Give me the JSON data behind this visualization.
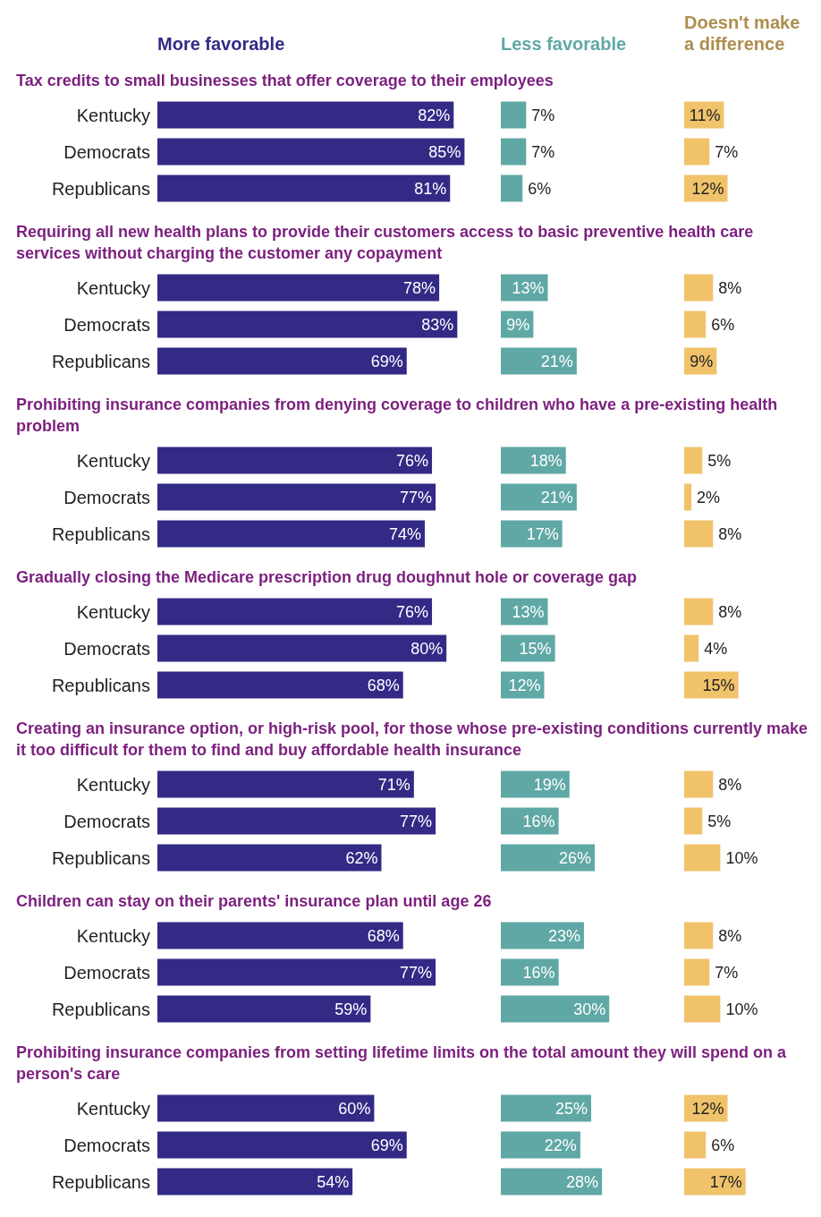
{
  "chart_data": [
    {
      "type": "bar",
      "orientation": "horizontal",
      "legend": "top",
      "title": "Tax credits to small businesses that offer coverage to their employees",
      "categories": [
        "Kentucky",
        "Democrats",
        "Republicans"
      ],
      "series": [
        {
          "name": "More favorable",
          "color": "#332a86",
          "values": [
            82,
            85,
            81
          ],
          "value_labels": [
            "82%",
            "85%",
            "81%"
          ]
        }
      ]
    },
    {
      "type": "bar",
      "orientation": "horizontal",
      "legend": "top",
      "categories": [
        null,
        null,
        null
      ],
      "series": [
        {
          "name": "Less favorable",
          "color": "#5fa8a5",
          "values": [
            7,
            7,
            6
          ],
          "value_labels": [
            "7%",
            "7%",
            "6%"
          ]
        }
      ]
    },
    {
      "type": "bar",
      "orientation": "horizontal",
      "legend": "top",
      "categories": [
        null,
        null,
        null
      ],
      "series": [
        {
          "name": "Doesn't make a difference",
          "color": "#f0c36b",
          "values": [
            11,
            7,
            12
          ],
          "value_labels": [
            "11%",
            "7%",
            "12%"
          ]
        }
      ]
    },
    {
      "type": "bar",
      "orientation": "horizontal",
      "title": "Requiring all new health plans to provide their customers access to basic preventive health care services without charging the customer any copayment",
      "categories": [
        "Kentucky",
        "Democrats",
        "Republicans"
      ],
      "series": [
        {
          "color": "#332a86",
          "values": [
            78,
            83,
            69
          ],
          "value_labels": [
            "78%",
            "83%",
            "69%"
          ]
        }
      ]
    },
    {
      "type": "bar",
      "orientation": "horizontal",
      "categories": [
        null,
        null,
        null
      ],
      "series": [
        {
          "color": "#5fa8a5",
          "values": [
            13,
            9,
            21
          ],
          "value_labels": [
            "13%",
            "9%",
            "21%"
          ]
        }
      ]
    },
    {
      "type": "bar",
      "orientation": "horizontal",
      "categories": [
        null,
        null,
        null
      ],
      "series": [
        {
          "color": "#f0c36b",
          "values": [
            8,
            6,
            9
          ],
          "value_labels": [
            "8%",
            "6%",
            "9%"
          ]
        }
      ]
    },
    {
      "type": "bar",
      "orientation": "horizontal",
      "title": "Prohibiting insurance companies from denying coverage to children who have a pre-existing health problem",
      "categories": [
        "Kentucky",
        "Democrats",
        "Republicans"
      ],
      "series": [
        {
          "color": "#332a86",
          "values": [
            76,
            77,
            74
          ],
          "value_labels": [
            "76%",
            "77%",
            "74%"
          ]
        }
      ]
    },
    {
      "type": "bar",
      "orientation": "horizontal",
      "categories": [
        null,
        null,
        null
      ],
      "series": [
        {
          "color": "#5fa8a5",
          "values": [
            18,
            21,
            17
          ],
          "value_labels": [
            "18%",
            "21%",
            "17%"
          ]
        }
      ]
    },
    {
      "type": "bar",
      "orientation": "horizontal",
      "categories": [
        null,
        null,
        null
      ],
      "series": [
        {
          "color": "#f0c36b",
          "values": [
            5,
            2,
            8
          ],
          "value_labels": [
            "5%",
            "2%",
            "8%"
          ]
        }
      ]
    },
    {
      "type": "bar",
      "orientation": "horizontal",
      "title": "Gradually closing the Medicare prescription drug doughnut hole or coverage gap",
      "categories": [
        "Kentucky",
        "Democrats",
        "Republicans"
      ],
      "series": [
        {
          "color": "#332a86",
          "values": [
            76,
            80,
            68
          ],
          "value_labels": [
            "76%",
            "80%",
            "68%"
          ]
        }
      ]
    },
    {
      "type": "bar",
      "orientation": "horizontal",
      "categories": [
        null,
        null,
        null
      ],
      "series": [
        {
          "color": "#5fa8a5",
          "values": [
            13,
            15,
            12
          ],
          "value_labels": [
            "13%",
            "15%",
            "12%"
          ]
        }
      ]
    },
    {
      "type": "bar",
      "orientation": "horizontal",
      "categories": [
        null,
        null,
        null
      ],
      "series": [
        {
          "color": "#f0c36b",
          "values": [
            8,
            4,
            15
          ],
          "value_labels": [
            "8%",
            "4%",
            "15%"
          ]
        }
      ]
    },
    {
      "type": "bar",
      "orientation": "horizontal",
      "title": "Creating an insurance option, or high-risk pool, for those whose pre-existing conditions currently make it too difficult for them to find and buy affordable health insurance",
      "categories": [
        "Kentucky",
        "Democrats",
        "Republicans"
      ],
      "series": [
        {
          "color": "#332a86",
          "values": [
            71,
            77,
            62
          ],
          "value_labels": [
            "71%",
            "77%",
            "62%"
          ]
        }
      ]
    },
    {
      "type": "bar",
      "orientation": "horizontal",
      "categories": [
        null,
        null,
        null
      ],
      "series": [
        {
          "color": "#5fa8a5",
          "values": [
            19,
            16,
            26
          ],
          "value_labels": [
            "19%",
            "16%",
            "26%"
          ]
        }
      ]
    },
    {
      "type": "bar",
      "orientation": "horizontal",
      "categories": [
        null,
        null,
        null
      ],
      "series": [
        {
          "color": "#f0c36b",
          "values": [
            8,
            5,
            10
          ],
          "value_labels": [
            "8%",
            "5%",
            "10%"
          ]
        }
      ]
    },
    {
      "type": "bar",
      "orientation": "horizontal",
      "title": "Children can stay on their parents' insurance plan until age 26",
      "categories": [
        "Kentucky",
        "Democrats",
        "Republicans"
      ],
      "series": [
        {
          "color": "#332a86",
          "values": [
            68,
            77,
            59
          ],
          "value_labels": [
            "68%",
            "77%",
            "59%"
          ]
        }
      ]
    },
    {
      "type": "bar",
      "orientation": "horizontal",
      "categories": [
        null,
        null,
        null
      ],
      "series": [
        {
          "color": "#5fa8a5",
          "values": [
            23,
            16,
            30
          ],
          "value_labels": [
            "23%",
            "16%",
            "30%"
          ]
        }
      ]
    },
    {
      "type": "bar",
      "orientation": "horizontal",
      "categories": [
        null,
        null,
        null
      ],
      "series": [
        {
          "color": "#f0c36b",
          "values": [
            8,
            7,
            10
          ],
          "value_labels": [
            "8%",
            "7%",
            "10%"
          ]
        }
      ]
    },
    {
      "type": "bar",
      "orientation": "horizontal",
      "title": "Prohibiting insurance companies from setting lifetime limits on the total amount they will spend on a person's care",
      "categories": [
        "Kentucky",
        "Democrats",
        "Republicans"
      ],
      "series": [
        {
          "color": "#332a86",
          "values": [
            60,
            69,
            54
          ],
          "value_labels": [
            "60%",
            "69%",
            "54%"
          ]
        }
      ]
    },
    {
      "type": "bar",
      "orientation": "horizontal",
      "categories": [
        null,
        null,
        null
      ],
      "series": [
        {
          "color": "#5fa8a5",
          "values": [
            25,
            22,
            28
          ],
          "value_labels": [
            "25%",
            "22%",
            "28%"
          ]
        }
      ]
    },
    {
      "type": "bar",
      "orientation": "horizontal",
      "categories": [
        null,
        null,
        null
      ],
      "series": [
        {
          "color": "#f0c36b",
          "values": [
            12,
            6,
            17
          ],
          "value_labels": [
            "12%",
            "6%",
            "17%"
          ]
        }
      ]
    }
  ]
}
